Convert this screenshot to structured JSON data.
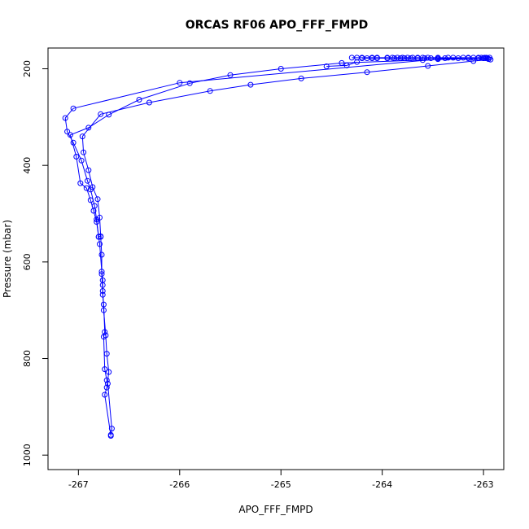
{
  "chart_data": {
    "type": "scatter",
    "title": "ORCAS RF06 APO_FFF_FMPD",
    "xlabel": "APO_FFF_FMPD",
    "ylabel": "Pressure (mbar)",
    "xlim": [
      -267.3,
      -262.8
    ],
    "ylim": [
      1030,
      157
    ],
    "y_reversed": true,
    "x_ticks": [
      -267,
      -266,
      -265,
      -264,
      -263
    ],
    "x_tick_labels": [
      "-267",
      "-266",
      "-265",
      "-264",
      "-263"
    ],
    "y_ticks": [
      200,
      400,
      600,
      800,
      1000
    ],
    "y_tick_labels": [
      "200",
      "400",
      "600",
      "800",
      "1000"
    ],
    "grid": false,
    "color": "#0000ff",
    "marker": "open-circle",
    "lines": true,
    "series": [
      {
        "x": [
          -266.68,
          -266.67,
          -266.71,
          -266.72,
          -266.74,
          -266.75,
          -266.74,
          -266.75,
          -266.76,
          -266.76,
          -266.76,
          -266.77,
          -266.79,
          -266.8,
          -266.82,
          -266.84,
          -266.88,
          -266.91,
          -266.97,
          -267.05,
          -267.11,
          -267.13,
          -267.05,
          -266.0,
          -263.45,
          -263.0,
          -262.95
        ],
        "y": [
          958,
          945,
          852,
          845,
          822,
          755,
          745,
          688,
          668,
          648,
          638,
          620,
          563,
          548,
          512,
          484,
          450,
          432,
          390,
          353,
          330,
          302,
          282,
          229,
          180,
          178,
          180
        ]
      },
      {
        "x": [
          -262.93,
          -263.1,
          -263.55,
          -264.15,
          -264.8,
          -265.3,
          -265.7,
          -266.3,
          -266.78,
          -266.96,
          -266.95,
          -266.9,
          -266.86,
          -266.81,
          -266.79,
          -266.78,
          -266.77,
          -266.77,
          -266.76,
          -266.75,
          -266.73,
          -266.72,
          -266.7,
          -266.72,
          -266.74,
          -266.68
        ],
        "y": [
          181,
          184,
          194,
          207,
          220,
          233,
          246,
          270,
          294,
          340,
          373,
          410,
          445,
          470,
          508,
          548,
          585,
          625,
          660,
          700,
          752,
          790,
          828,
          860,
          875,
          960
        ]
      },
      {
        "x": [
          -263.0,
          -263.6,
          -264.4,
          -265.0,
          -265.5,
          -265.9,
          -266.4,
          -266.7,
          -266.9,
          -267.08,
          -267.02,
          -266.98,
          -266.92,
          -266.88,
          -266.85,
          -266.82,
          -266.8,
          -266.78
        ],
        "y": [
          178,
          182,
          188,
          200,
          213,
          230,
          264,
          295,
          322,
          337,
          382,
          437,
          447,
          472,
          494,
          517,
          548,
          547
        ]
      },
      {
        "x": [
          -264.3,
          -264.25,
          -264.2,
          -264.1,
          -264.05,
          -263.95,
          -263.9,
          -263.85,
          -263.8,
          -263.75,
          -263.7,
          -263.65,
          -263.6,
          -263.55,
          -263.45,
          -263.35,
          -263.3,
          -263.2,
          -263.15,
          -263.1,
          -263.05,
          -263.02,
          -262.99,
          -262.97,
          -262.94
        ],
        "y": [
          177,
          177,
          177,
          177,
          177,
          177,
          177,
          177,
          177,
          177,
          177,
          177,
          177,
          177,
          177,
          177,
          177,
          177,
          177,
          177,
          177,
          177,
          177,
          177,
          177
        ]
      },
      {
        "x": [
          -264.2,
          -264.15,
          -264.1,
          -264.05,
          -263.95,
          -263.88,
          -263.82,
          -263.78,
          -263.72,
          -263.65,
          -263.58,
          -263.52,
          -263.45,
          -263.38,
          -263.25,
          -263.15,
          -263.05,
          -263.0,
          -262.98,
          -262.96
        ],
        "y": [
          178,
          178,
          178,
          178,
          178,
          178,
          178,
          178,
          178,
          178,
          178,
          178,
          178,
          178,
          178,
          178,
          178,
          178,
          178,
          178
        ]
      },
      {
        "x": [
          -264.55,
          -264.35,
          -264.25
        ],
        "y": [
          195,
          193,
          186
        ]
      }
    ]
  }
}
